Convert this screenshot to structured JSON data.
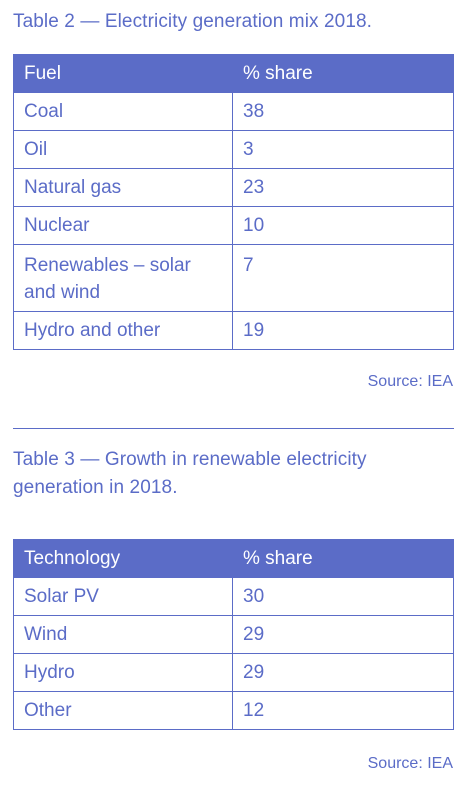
{
  "table2": {
    "title": "Table 2 — Electricity generation mix 2018.",
    "headers": [
      "Fuel",
      "% share"
    ],
    "rows": [
      [
        "Coal",
        "38"
      ],
      [
        "Oil",
        "3"
      ],
      [
        "Natural gas",
        "23"
      ],
      [
        "Nuclear",
        "10"
      ],
      [
        "Renewables – solar and wind",
        "7"
      ],
      [
        "Hydro and other",
        "19"
      ]
    ],
    "source": "Source: IEA"
  },
  "table3": {
    "title": "Table 3 — Growth in renewable electricity generation in 2018.",
    "headers": [
      "Technology",
      "% share"
    ],
    "rows": [
      [
        "Solar PV",
        "30"
      ],
      [
        "Wind",
        "29"
      ],
      [
        "Hydro",
        "29"
      ],
      [
        "Other",
        "12"
      ]
    ],
    "source": "Source: IEA"
  },
  "colors": {
    "accent": "#5b6cc7",
    "header_text": "#ffffff",
    "background": "#ffffff"
  }
}
